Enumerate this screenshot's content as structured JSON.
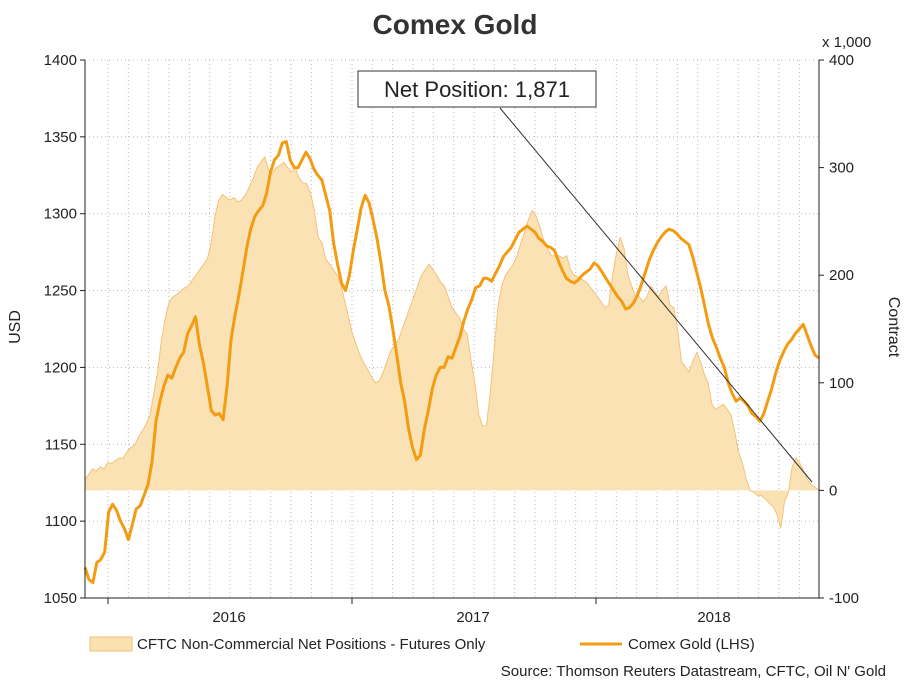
{
  "chart_data": {
    "type": "line",
    "title": "Comex Gold",
    "left_axis": {
      "label": "USD",
      "min": 1050,
      "max": 1400,
      "ticks": [
        1050,
        1100,
        1150,
        1200,
        1250,
        1300,
        1350,
        1400
      ]
    },
    "right_axis": {
      "label": "Contract",
      "unit": "x 1,000",
      "min": -100,
      "max": 400,
      "ticks": [
        -100,
        0,
        100,
        200,
        300,
        400
      ]
    },
    "x_axis": {
      "ticks": [
        "2016",
        "2017",
        "2018"
      ]
    },
    "annotation": "Net Position: 1,871",
    "source": "Source: Thomson Reuters Datastream, CFTC, Oil N' Gold",
    "colors": {
      "gold": "#f39c12",
      "area": "#fbe0b0",
      "area_edge": "#f2c27a",
      "annotation_line": "#333333"
    },
    "series": [
      {
        "name": "CFTC Non-Commercial Net Positions - Futures Only",
        "axis": "right",
        "style": "area",
        "values": [
          10,
          15,
          20,
          18,
          22,
          20,
          26,
          25,
          28,
          30,
          30,
          36,
          40,
          42,
          50,
          55,
          62,
          70,
          90,
          110,
          140,
          160,
          175,
          180,
          182,
          185,
          188,
          190,
          195,
          200,
          205,
          210,
          215,
          230,
          255,
          270,
          275,
          272,
          270,
          272,
          268,
          270,
          275,
          282,
          290,
          300,
          305,
          310,
          298,
          295,
          300,
          302,
          305,
          300,
          296,
          300,
          290,
          286,
          285,
          276,
          260,
          235,
          230,
          215,
          210,
          205,
          200,
          190,
          175,
          160,
          145,
          135,
          125,
          118,
          112,
          105,
          100,
          102,
          110,
          120,
          130,
          135,
          140,
          150,
          160,
          170,
          180,
          190,
          200,
          205,
          210,
          205,
          200,
          194,
          190,
          180,
          170,
          165,
          160,
          150,
          145,
          120,
          100,
          70,
          60,
          60,
          90,
          130,
          170,
          190,
          200,
          205,
          210,
          218,
          230,
          240,
          252,
          260,
          255,
          245,
          232,
          225,
          218,
          218,
          218,
          216,
          218,
          205,
          200,
          198,
          196,
          194,
          190,
          185,
          180,
          175,
          170,
          172,
          200,
          220,
          235,
          225,
          200,
          190,
          180,
          180,
          175,
          180,
          190,
          185,
          180,
          186,
          190,
          172,
          170,
          150,
          120,
          115,
          110,
          120,
          128,
          120,
          108,
          100,
          80,
          75,
          78,
          80,
          75,
          70,
          54,
          35,
          25,
          10,
          0,
          -2,
          -5,
          -5,
          -8,
          -12,
          -15,
          -22,
          -35,
          -10,
          -2,
          22,
          30,
          25,
          18,
          10,
          5,
          3,
          0
        ]
      },
      {
        "name": "Comex Gold (LHS)",
        "axis": "left",
        "style": "line",
        "values": [
          1070,
          1062,
          1060,
          1073,
          1075,
          1080,
          1106,
          1111,
          1107,
          1100,
          1095,
          1088,
          1098,
          1108,
          1110,
          1117,
          1124,
          1139,
          1165,
          1178,
          1188,
          1195,
          1193,
          1200,
          1206,
          1210,
          1222,
          1227,
          1233,
          1215,
          1203,
          1188,
          1172,
          1169,
          1170,
          1166,
          1188,
          1218,
          1234,
          1247,
          1262,
          1278,
          1290,
          1298,
          1302,
          1305,
          1313,
          1327,
          1335,
          1338,
          1346,
          1347,
          1335,
          1330,
          1330,
          1335,
          1340,
          1336,
          1329,
          1325,
          1322,
          1312,
          1302,
          1281,
          1267,
          1255,
          1250,
          1260,
          1276,
          1290,
          1304,
          1312,
          1307,
          1296,
          1284,
          1268,
          1250,
          1240,
          1225,
          1208,
          1190,
          1178,
          1160,
          1148,
          1140,
          1143,
          1160,
          1172,
          1186,
          1195,
          1200,
          1200,
          1207,
          1206,
          1213,
          1220,
          1230,
          1238,
          1244,
          1252,
          1253,
          1258,
          1258,
          1256,
          1261,
          1266,
          1272,
          1275,
          1278,
          1283,
          1288,
          1290,
          1292,
          1290,
          1288,
          1284,
          1282,
          1279,
          1278,
          1276,
          1269,
          1263,
          1258,
          1256,
          1255,
          1257,
          1260,
          1262,
          1264,
          1268,
          1266,
          1262,
          1258,
          1254,
          1250,
          1246,
          1243,
          1238,
          1239,
          1242,
          1247,
          1254,
          1262,
          1270,
          1276,
          1281,
          1285,
          1288,
          1290,
          1289,
          1287,
          1284,
          1282,
          1280,
          1272,
          1262,
          1252,
          1240,
          1228,
          1219,
          1213,
          1206,
          1200,
          1190,
          1183,
          1178,
          1180,
          1178,
          1175,
          1170,
          1168,
          1165,
          1170,
          1178,
          1186,
          1196,
          1204,
          1210,
          1215,
          1218,
          1222,
          1225,
          1228,
          1221,
          1214,
          1208,
          1206
        ]
      }
    ],
    "legend": [
      {
        "label": "CFTC Non-Commercial Net Positions - Futures Only",
        "symbol": "area"
      },
      {
        "label": "Comex Gold (LHS)",
        "symbol": "line"
      }
    ],
    "legend_position": "bottom",
    "grid": true
  }
}
